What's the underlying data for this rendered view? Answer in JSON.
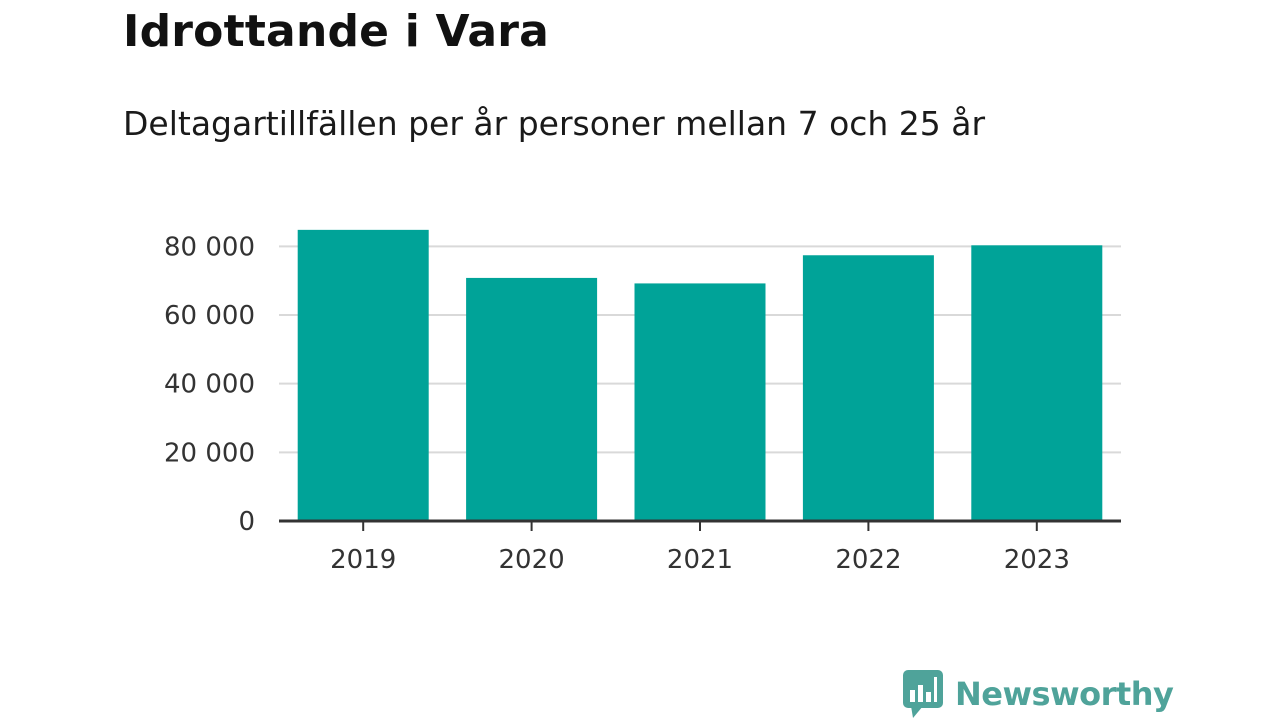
{
  "colors": {
    "bar": "#00a398",
    "grid": "#d9d9d9",
    "axis": "#333333",
    "brand": "#4fa39a"
  },
  "brand": {
    "name": "Newsworthy",
    "icon": "newsworthy-bar-chart-icon"
  },
  "chart_data": {
    "type": "bar",
    "title": "Idrottande i Vara",
    "subtitle": "Deltagartillfällen per år personer mellan 7 och 25 år",
    "xlabel": "",
    "ylabel": "",
    "categories": [
      "2019",
      "2020",
      "2021",
      "2022",
      "2023"
    ],
    "values": [
      84800,
      70800,
      69200,
      77400,
      80300
    ],
    "ylim": [
      0,
      90000
    ],
    "yticks": [
      0,
      20000,
      40000,
      60000,
      80000
    ],
    "ytick_labels": [
      "0",
      "20 000",
      "40 000",
      "60 000",
      "80 000"
    ],
    "grid": true,
    "legend": "none"
  }
}
